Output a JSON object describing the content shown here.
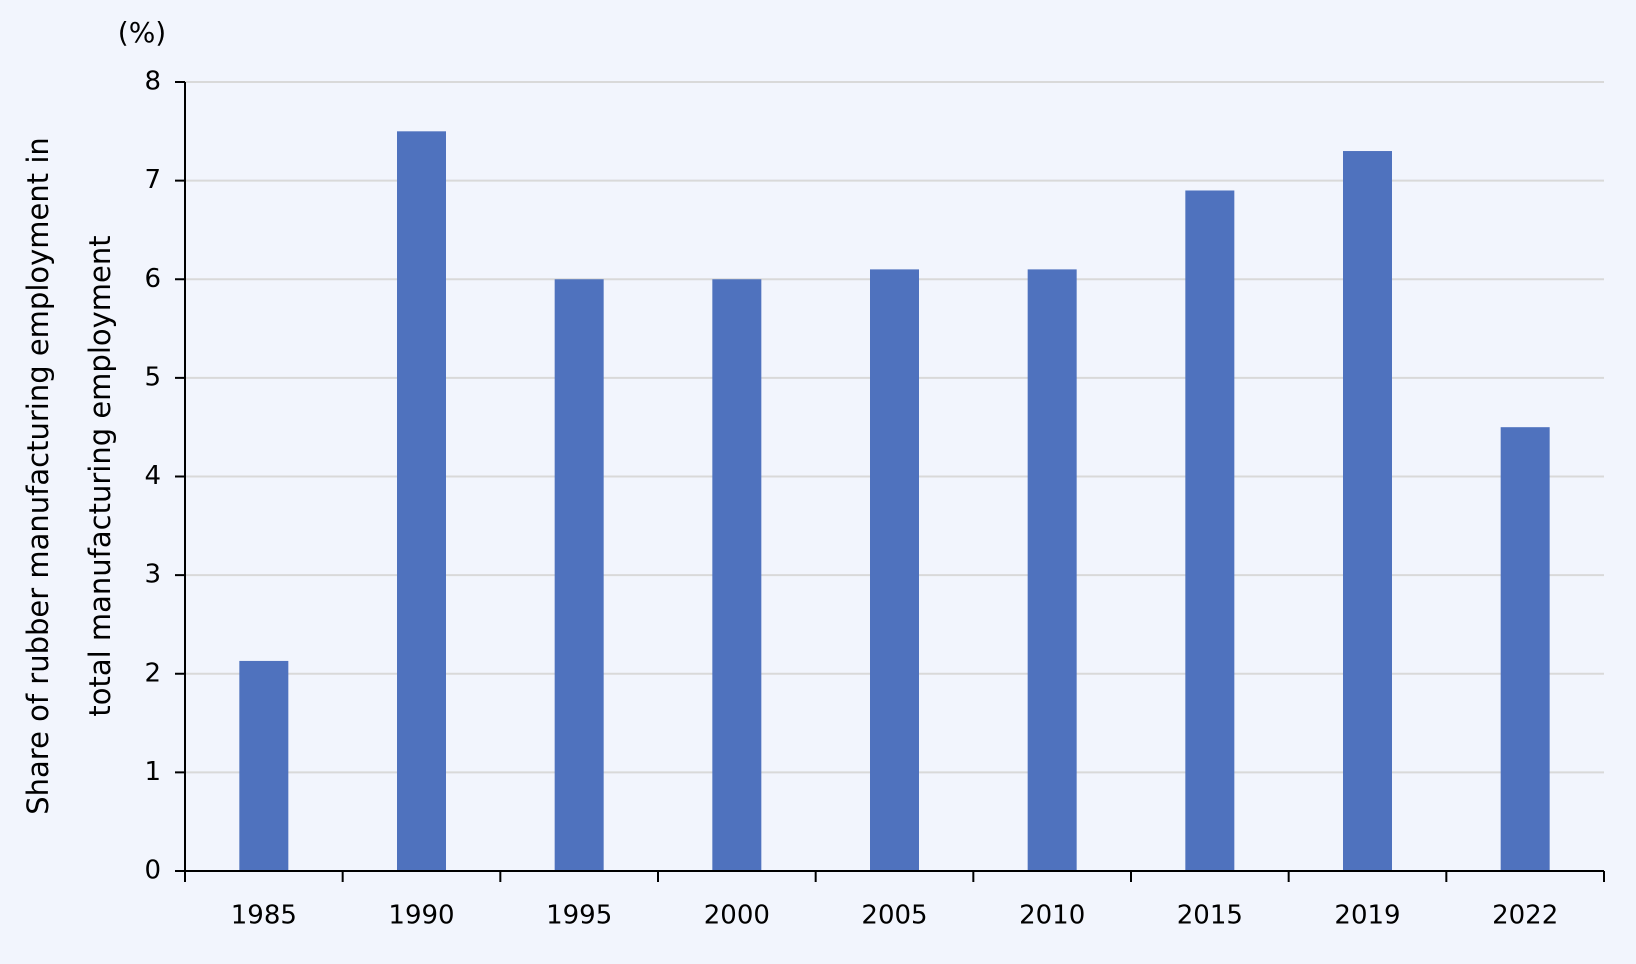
{
  "chart_data": {
    "type": "bar",
    "y_unit": "(%)",
    "ylabel": [
      "Share of rubber manufacturing employment in",
      "total manufacturing employment"
    ],
    "categories": [
      "1985",
      "1990",
      "1995",
      "2000",
      "2005",
      "2010",
      "2015",
      "2019",
      "2022"
    ],
    "values": [
      2.13,
      7.5,
      6.0,
      6.0,
      6.1,
      6.1,
      6.9,
      7.3,
      4.5
    ],
    "color": "#4f72be",
    "ylim": [
      0,
      8
    ],
    "yticks": [
      0,
      1,
      2,
      3,
      4,
      5,
      6,
      7,
      8
    ],
    "grid": true
  }
}
